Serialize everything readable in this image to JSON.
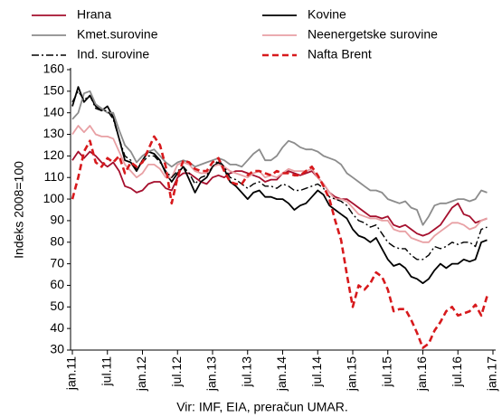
{
  "chart_data": {
    "type": "line",
    "y_label": "Indeks 2008=100",
    "source": "Vir: IMF, EIA, preračun UMAR.",
    "legend": "top",
    "categories": [
      "jan.11",
      null,
      null,
      null,
      null,
      null,
      "jul.11",
      null,
      null,
      null,
      null,
      null,
      "jan.12",
      null,
      null,
      null,
      null,
      null,
      "jul.12",
      null,
      null,
      null,
      null,
      null,
      "jan.13",
      null,
      null,
      null,
      null,
      null,
      "jul.13",
      null,
      null,
      null,
      null,
      null,
      "jan.14",
      null,
      null,
      null,
      null,
      null,
      "jul.14",
      null,
      null,
      null,
      null,
      null,
      "jan.15",
      null,
      null,
      null,
      null,
      null,
      "jul.15",
      null,
      null,
      null,
      null,
      null,
      "jan.16",
      null,
      null,
      null,
      null,
      null,
      "jul.16",
      null,
      null,
      null,
      null,
      null,
      "jan.17"
    ],
    "ylim": [
      30,
      160
    ],
    "yticks": [
      30,
      40,
      50,
      60,
      70,
      80,
      90,
      100,
      110,
      120,
      130,
      140,
      150,
      160
    ],
    "series": [
      {
        "name": "Hrana",
        "color": "#a50f2d",
        "style": "solid",
        "values": [
          118,
          122,
          119,
          122,
          120,
          117,
          115,
          117,
          113,
          106,
          105,
          103,
          104,
          107,
          108,
          108,
          105,
          104,
          110,
          112,
          112,
          110,
          108,
          107,
          110,
          111,
          110,
          112,
          113,
          113,
          112,
          111,
          110,
          108,
          109,
          109,
          112,
          113,
          112,
          111,
          112,
          113,
          110,
          107,
          103,
          101,
          100,
          100,
          98,
          96,
          94,
          92,
          92,
          91,
          92,
          88,
          87,
          88,
          86,
          84,
          83,
          84,
          86,
          88,
          92,
          96,
          98,
          93,
          92,
          89,
          90,
          91,
          null
        ]
      },
      {
        "name": "Kovine",
        "color": "#000000",
        "style": "solid",
        "values": [
          143,
          152,
          145,
          148,
          143,
          141,
          143,
          138,
          128,
          118,
          117,
          113,
          118,
          122,
          121,
          118,
          112,
          108,
          112,
          115,
          109,
          103,
          108,
          110,
          115,
          117,
          114,
          108,
          106,
          103,
          100,
          103,
          104,
          101,
          101,
          100,
          100,
          98,
          95,
          97,
          98,
          101,
          104,
          102,
          97,
          95,
          93,
          91,
          86,
          83,
          82,
          80,
          82,
          77,
          72,
          69,
          70,
          68,
          64,
          63,
          61,
          63,
          67,
          70,
          68,
          70,
          70,
          72,
          71,
          72,
          80,
          81,
          null
        ]
      },
      {
        "name": "Kmet.surovine",
        "color": "#8c8c8c",
        "style": "solid",
        "values": [
          137,
          140,
          149,
          150,
          144,
          142,
          140,
          140,
          132,
          125,
          122,
          117,
          120,
          122,
          123,
          120,
          117,
          115,
          117,
          118,
          117,
          115,
          116,
          117,
          118,
          119,
          118,
          116,
          116,
          115,
          118,
          121,
          123,
          118,
          118,
          120,
          124,
          127,
          126,
          124,
          123,
          123,
          122,
          120,
          119,
          118,
          116,
          112,
          110,
          108,
          106,
          104,
          104,
          103,
          100,
          99,
          98,
          99,
          96,
          95,
          88,
          92,
          97,
          98,
          98,
          99,
          100,
          100,
          99,
          100,
          104,
          103,
          null
        ]
      },
      {
        "name": "Neenergetske surovine",
        "color": "#e8a0a4",
        "style": "solid",
        "values": [
          130,
          134,
          131,
          134,
          130,
          129,
          129,
          128,
          122,
          116,
          113,
          110,
          112,
          116,
          116,
          114,
          110,
          110,
          116,
          117,
          116,
          113,
          112,
          112,
          115,
          116,
          115,
          113,
          112,
          111,
          110,
          112,
          113,
          110,
          111,
          110,
          112,
          114,
          113,
          113,
          113,
          114,
          110,
          107,
          103,
          100,
          100,
          99,
          96,
          93,
          92,
          91,
          91,
          90,
          90,
          86,
          85,
          85,
          82,
          81,
          80,
          80,
          83,
          85,
          87,
          89,
          89,
          88,
          86,
          87,
          90,
          91,
          null
        ]
      },
      {
        "name": "Ind. surovine",
        "color": "#000000",
        "style": "dashdot",
        "values": [
          145,
          150,
          146,
          148,
          142,
          141,
          141,
          137,
          128,
          120,
          118,
          114,
          117,
          120,
          120,
          117,
          113,
          110,
          113,
          115,
          112,
          107,
          110,
          111,
          115,
          118,
          115,
          110,
          109,
          107,
          105,
          107,
          108,
          106,
          106,
          105,
          107,
          106,
          104,
          104,
          105,
          106,
          107,
          105,
          101,
          100,
          99,
          97,
          93,
          90,
          89,
          87,
          88,
          84,
          80,
          78,
          77,
          77,
          74,
          72,
          72,
          74,
          78,
          77,
          78,
          80,
          79,
          80,
          80,
          78,
          86,
          87,
          null
        ]
      },
      {
        "name": "Nafta Brent",
        "color": "#d7191c",
        "style": "dashed",
        "values": [
          100,
          110,
          122,
          127,
          117,
          115,
          119,
          117,
          120,
          112,
          117,
          115,
          117,
          123,
          129,
          125,
          115,
          98,
          110,
          118,
          117,
          114,
          113,
          113,
          117,
          119,
          113,
          108,
          107,
          107,
          111,
          113,
          113,
          112,
          111,
          113,
          112,
          112,
          111,
          111,
          113,
          115,
          111,
          106,
          100,
          90,
          81,
          65,
          50,
          60,
          58,
          61,
          66,
          64,
          58,
          48,
          49,
          49,
          44,
          38,
          31,
          33,
          39,
          43,
          48,
          50,
          46,
          47,
          48,
          51,
          46,
          55,
          null
        ]
      }
    ]
  }
}
